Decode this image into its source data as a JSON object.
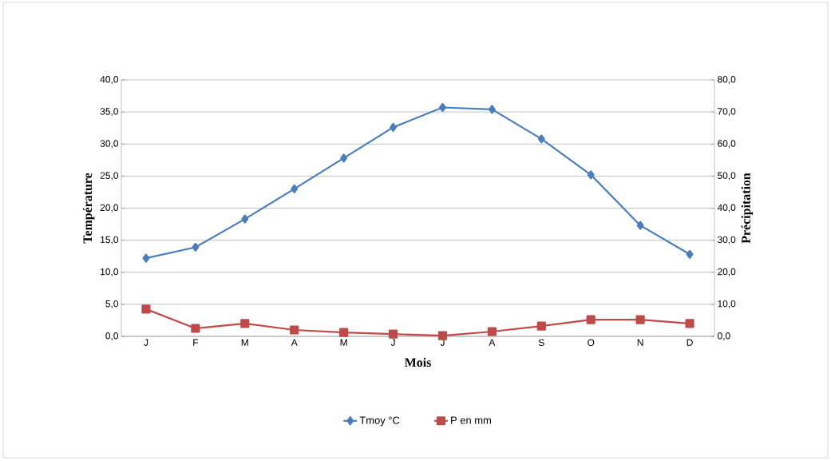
{
  "chart_data": {
    "type": "line",
    "xlabel": "Mois",
    "ylabel": "Température",
    "y2label": "Précipitation",
    "categories": [
      "J",
      "F",
      "M",
      "A",
      "M",
      "J",
      "J",
      "A",
      "S",
      "O",
      "N",
      "D"
    ],
    "series": [
      {
        "name": "Tmoy °C",
        "color": "#4a7ebb",
        "marker": "diamond",
        "values": [
          12.2,
          13.9,
          18.3,
          23.0,
          27.8,
          32.6,
          35.7,
          35.4,
          30.8,
          25.2,
          17.3,
          12.8
        ]
      },
      {
        "name": "P en mm",
        "color": "#be4b48",
        "marker": "square",
        "axis": "y2",
        "values": [
          8.5,
          2.5,
          4.0,
          2.0,
          1.2,
          0.7,
          0.2,
          1.5,
          3.2,
          5.2,
          5.2,
          4.0
        ]
      }
    ],
    "ylim": [
      0,
      40
    ],
    "yticks": [
      {
        "value": 0,
        "label": "0,0"
      },
      {
        "value": 5,
        "label": "5,0"
      },
      {
        "value": 10,
        "label": "10,0"
      },
      {
        "value": 15,
        "label": "15,0"
      },
      {
        "value": 20,
        "label": "20,0"
      },
      {
        "value": 25,
        "label": "25,0"
      },
      {
        "value": 30,
        "label": "30,0"
      },
      {
        "value": 35,
        "label": "35,0"
      },
      {
        "value": 40,
        "label": "40,0"
      }
    ],
    "y2lim": [
      0,
      80
    ],
    "y2ticks": [
      {
        "value": 0,
        "label": "0,0"
      },
      {
        "value": 10,
        "label": "10,0"
      },
      {
        "value": 20,
        "label": "20,0"
      },
      {
        "value": 30,
        "label": "30,0"
      },
      {
        "value": 40,
        "label": "40,0"
      },
      {
        "value": 50,
        "label": "50,0"
      },
      {
        "value": 60,
        "label": "60,0"
      },
      {
        "value": 70,
        "label": "70,0"
      },
      {
        "value": 80,
        "label": "80,0"
      }
    ],
    "grid": "y",
    "legend": "bottom",
    "line_style": "solid"
  }
}
